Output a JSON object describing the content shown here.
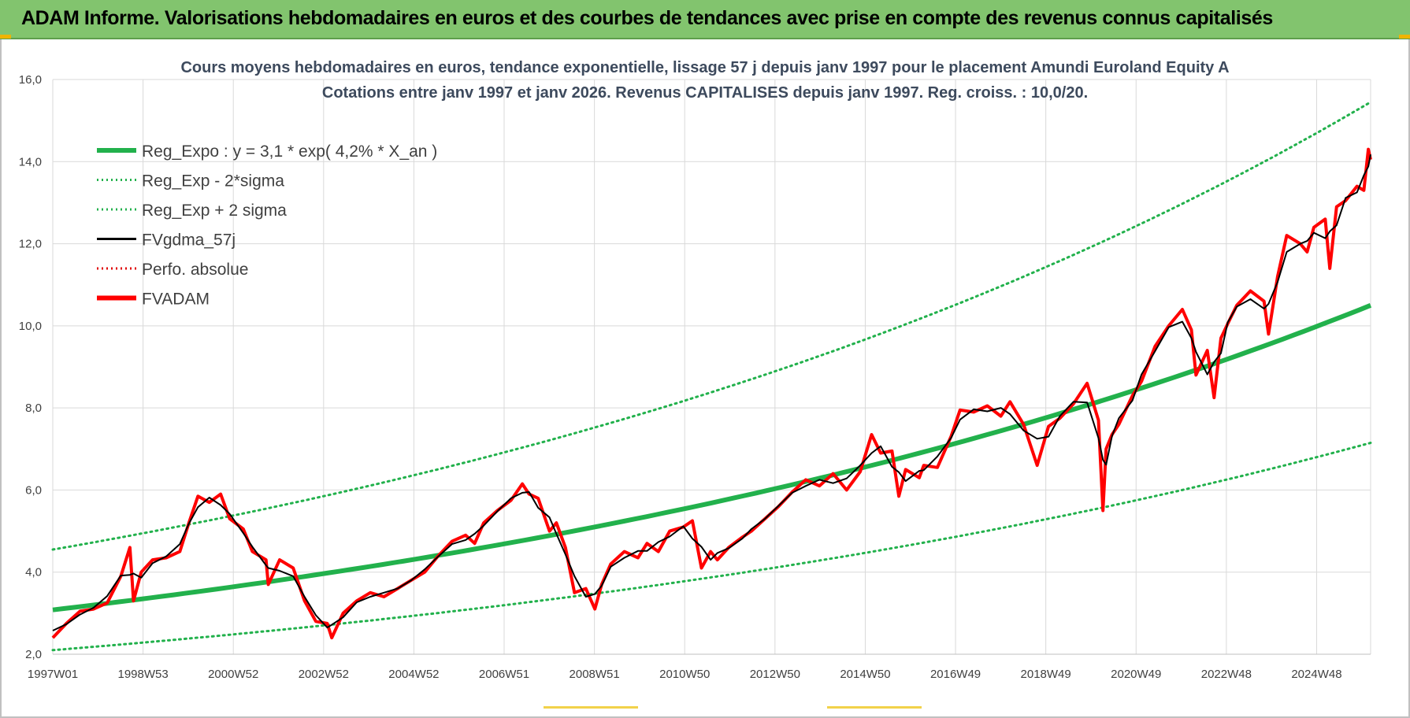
{
  "banner": {
    "title": "ADAM Informe. Valorisations hebdomadaires en euros et des courbes de tendances avec prise en compte des revenus connus capitalisés",
    "color": "#82c46e"
  },
  "chart_data": {
    "type": "line",
    "title": "Cours moyens hebdomadaires en euros, tendance exponentielle, lissage 57 j depuis janv 1997  pour le placement Amundi Euroland Equity A",
    "subtitle": "Cotations entre janv 1997 et janv 2026. Revenus CAPITALISES depuis janv 1997. Reg. croiss. : 10,0/20.",
    "xlabel": "",
    "ylabel": "",
    "x_range": [
      1997.0,
      2026.05
    ],
    "ylim": [
      2.0,
      16.0
    ],
    "yticks": [
      "2,0",
      "4,0",
      "6,0",
      "8,0",
      "10,0",
      "12,0",
      "14,0",
      "16,0"
    ],
    "xticks": [
      "1997W01",
      "1998W53",
      "2000W52",
      "2002W52",
      "2004W52",
      "2006W51",
      "2008W51",
      "2010W50",
      "2012W50",
      "2014W50",
      "2016W49",
      "2018W49",
      "2020W49",
      "2022W48",
      "2024W48"
    ],
    "grid": true,
    "legend_position": "top-left",
    "legend": [
      {
        "label": "Reg_Expo : y = 3,1 * exp( 4,2% *  X_an )",
        "color": "#22b14c",
        "style": "solid-thick"
      },
      {
        "label": "Reg_Exp - 2*sigma",
        "color": "#22b14c",
        "style": "dotted"
      },
      {
        "label": "Reg_Exp + 2 sigma",
        "color": "#22b14c",
        "style": "dotted"
      },
      {
        "label": "FVgdma_57j",
        "color": "#000000",
        "style": "solid"
      },
      {
        "label": "Perfo. absolue",
        "color": "#e00000",
        "style": "dotted"
      },
      {
        "label": "FVADAM",
        "color": "#ff0000",
        "style": "solid-thick"
      }
    ],
    "series": [
      {
        "name": "Reg_Expo : y = 3,1 * exp( 4,2% *  X_an )",
        "x": [
          1997.0,
          2026.05
        ],
        "y": [
          3.08,
          10.5
        ],
        "curve": "exponential"
      },
      {
        "name": "Reg_Exp - 2*sigma",
        "x": [
          1997.0,
          2026.05
        ],
        "y": [
          2.1,
          7.15
        ],
        "curve": "exponential"
      },
      {
        "name": "Reg_Exp + 2 sigma",
        "x": [
          1997.0,
          2026.05
        ],
        "y": [
          4.55,
          15.45
        ],
        "curve": "exponential"
      },
      {
        "name": "FVADAM",
        "x": [
          1997.0,
          1997.3,
          1997.6,
          1997.9,
          1998.2,
          1998.5,
          1998.7,
          1998.78,
          1998.95,
          1999.2,
          1999.5,
          1999.8,
          2000.0,
          2000.2,
          2000.45,
          2000.7,
          2000.9,
          2001.2,
          2001.4,
          2001.7,
          2001.75,
          2002.0,
          2002.3,
          2002.55,
          2002.8,
          2003.05,
          2003.15,
          2003.4,
          2003.7,
          2004.0,
          2004.3,
          2004.6,
          2004.9,
          2005.2,
          2005.5,
          2005.8,
          2006.1,
          2006.3,
          2006.5,
          2006.8,
          2007.1,
          2007.35,
          2007.5,
          2007.7,
          2007.95,
          2008.1,
          2008.3,
          2008.5,
          2008.75,
          2008.95,
          2009.1,
          2009.3,
          2009.6,
          2009.9,
          2010.1,
          2010.35,
          2010.6,
          2010.9,
          2011.1,
          2011.3,
          2011.5,
          2011.65,
          2011.9,
          2012.2,
          2012.4,
          2012.7,
          2013.0,
          2013.3,
          2013.6,
          2013.9,
          2014.2,
          2014.5,
          2014.8,
          2015.05,
          2015.25,
          2015.5,
          2015.65,
          2015.8,
          2016.1,
          2016.2,
          2016.5,
          2016.8,
          2017.0,
          2017.3,
          2017.6,
          2017.9,
          2018.1,
          2018.4,
          2018.7,
          2018.95,
          2019.2,
          2019.5,
          2019.8,
          2020.05,
          2020.15,
          2020.22,
          2020.35,
          2020.5,
          2020.8,
          2021.0,
          2021.3,
          2021.6,
          2021.9,
          2022.1,
          2022.2,
          2022.45,
          2022.6,
          2022.75,
          2022.9,
          2023.1,
          2023.4,
          2023.7,
          2023.8,
          2024.0,
          2024.2,
          2024.5,
          2024.65,
          2024.8,
          2025.05,
          2025.15,
          2025.3,
          2025.5,
          2025.75,
          2025.9,
          2026.0,
          2026.05
        ],
        "y": [
          2.4,
          2.75,
          3.05,
          3.1,
          3.25,
          3.9,
          4.6,
          3.3,
          4.0,
          4.3,
          4.35,
          4.5,
          5.2,
          5.85,
          5.7,
          5.9,
          5.3,
          5.05,
          4.5,
          4.3,
          3.7,
          4.3,
          4.1,
          3.3,
          2.8,
          2.75,
          2.4,
          3.0,
          3.3,
          3.5,
          3.4,
          3.6,
          3.8,
          4.0,
          4.4,
          4.75,
          4.9,
          4.7,
          5.2,
          5.5,
          5.75,
          6.15,
          5.9,
          5.8,
          5.0,
          5.2,
          4.6,
          3.5,
          3.6,
          3.1,
          3.7,
          4.2,
          4.5,
          4.35,
          4.7,
          4.5,
          5.0,
          5.1,
          5.25,
          4.1,
          4.5,
          4.3,
          4.6,
          4.85,
          5.0,
          5.3,
          5.6,
          5.95,
          6.25,
          6.1,
          6.4,
          6.0,
          6.45,
          7.35,
          6.9,
          6.95,
          5.85,
          6.5,
          6.3,
          6.6,
          6.55,
          7.3,
          7.95,
          7.9,
          8.05,
          7.8,
          8.15,
          7.6,
          6.6,
          7.55,
          7.75,
          8.1,
          8.6,
          7.7,
          5.5,
          7.0,
          7.35,
          7.6,
          8.3,
          8.65,
          9.5,
          10.0,
          10.4,
          9.9,
          8.8,
          9.4,
          8.25,
          9.7,
          10.05,
          10.5,
          10.85,
          10.6,
          9.8,
          11.2,
          12.2,
          12.0,
          11.8,
          12.4,
          12.6,
          11.4,
          12.9,
          13.05,
          13.4,
          13.3,
          14.3,
          14.05
        ]
      }
    ]
  }
}
